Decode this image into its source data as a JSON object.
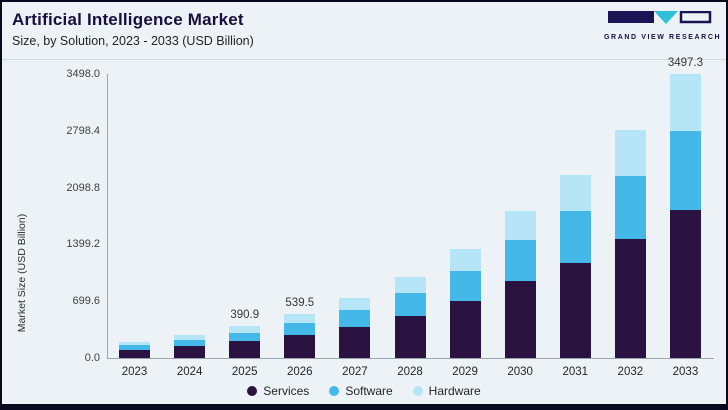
{
  "header": {
    "title": "Artificial Intelligence Market",
    "subtitle": "Size, by Solution, 2023 - 2033 (USD Billion)",
    "logo_text": "GRAND VIEW RESEARCH"
  },
  "colors": {
    "services": "#2b1341",
    "software": "#44b8e9",
    "hardware": "#b7e5f8",
    "background": "#edf2f6",
    "border": "#0b0920",
    "logo_navy": "#1b1454",
    "logo_teal": "#2fc0d8"
  },
  "chart_data": {
    "type": "bar",
    "stacked": true,
    "title": "Artificial Intelligence Market Size, by Solution, 2023 - 2033 (USD Billion)",
    "xlabel": "",
    "ylabel": "Market Size (USD Billion)",
    "categories": [
      "2023",
      "2024",
      "2025",
      "2026",
      "2027",
      "2028",
      "2029",
      "2030",
      "2031",
      "2032",
      "2033"
    ],
    "series": [
      {
        "name": "Services",
        "color": "#2b1341",
        "values": [
          102.2,
          145.2,
          203.3,
          280.5,
          383.2,
          517.4,
          699.4,
          942.1,
          1172.9,
          1460.1,
          1818.6
        ]
      },
      {
        "name": "Software",
        "color": "#44b8e9",
        "values": [
          55.0,
          78.2,
          109.5,
          151.1,
          206.4,
          278.6,
          376.6,
          507.3,
          631.6,
          786.2,
          979.2
        ]
      },
      {
        "name": "Hardware",
        "color": "#b7e5f8",
        "values": [
          39.4,
          55.8,
          78.1,
          107.9,
          147.4,
          199.0,
          269.0,
          362.4,
          451.1,
          561.5,
          699.5
        ]
      }
    ],
    "totals": [
      196.6,
      279.2,
      390.9,
      539.5,
      737.0,
      995.0,
      1345.0,
      1811.8,
      2255.6,
      2807.8,
      3497.3
    ],
    "annotations": [
      {
        "category": "2025",
        "text": "390.9"
      },
      {
        "category": "2026",
        "text": "539.5"
      },
      {
        "category": "2033",
        "text": "3497.3"
      }
    ],
    "yticks": [
      0.0,
      699.6,
      1399.2,
      2098.8,
      2798.4,
      3498.0
    ],
    "ylim": [
      0,
      3498.0
    ],
    "grid": false,
    "legend_position": "bottom"
  }
}
